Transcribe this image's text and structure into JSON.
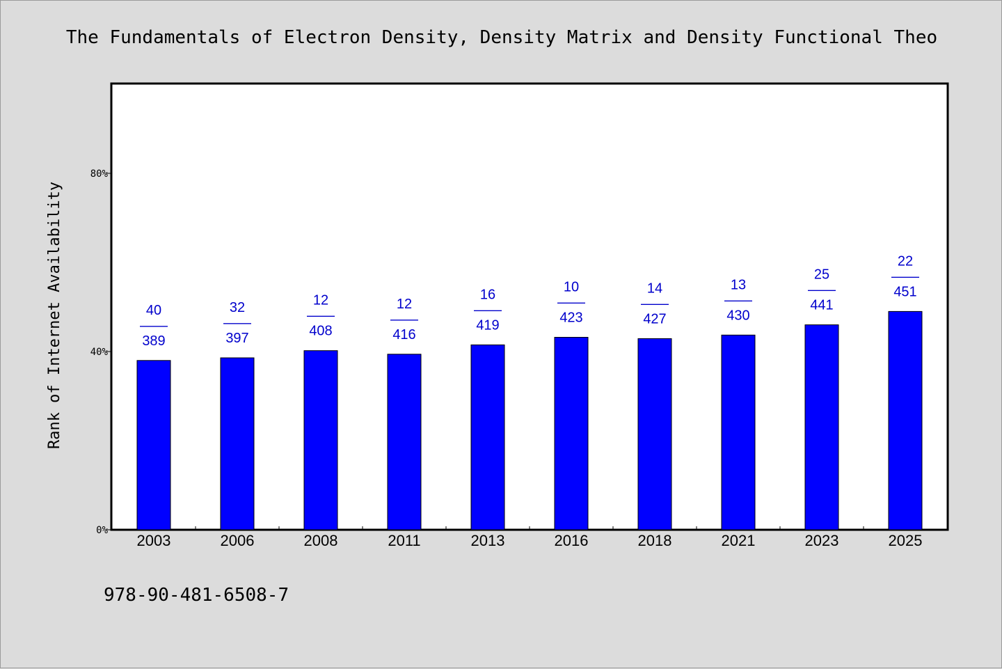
{
  "chart_data": {
    "type": "bar",
    "title": "The Fundamentals of Electron Density, Density Matrix and Density Functional Theo",
    "ylabel": "Rank of Internet Availability",
    "xlabel": "",
    "categories": [
      "2003",
      "2006",
      "2008",
      "2011",
      "2013",
      "2016",
      "2018",
      "2021",
      "2023",
      "2025"
    ],
    "values": [
      38.0,
      38.6,
      40.2,
      39.4,
      41.5,
      43.2,
      42.9,
      43.7,
      46.0,
      49.0
    ],
    "data_labels": [
      {
        "top": "40",
        "sep": "——",
        "bottom": "389"
      },
      {
        "top": "32",
        "sep": "——",
        "bottom": "397"
      },
      {
        "top": "12",
        "sep": "——",
        "bottom": "408"
      },
      {
        "top": "12",
        "sep": "——",
        "bottom": "416"
      },
      {
        "top": "16",
        "sep": "——",
        "bottom": "419"
      },
      {
        "top": "10",
        "sep": "——",
        "bottom": "423"
      },
      {
        "top": "14",
        "sep": "——",
        "bottom": "427"
      },
      {
        "top": "13",
        "sep": "——",
        "bottom": "430"
      },
      {
        "top": "25",
        "sep": "——",
        "bottom": "441"
      },
      {
        "top": "22",
        "sep": "——",
        "bottom": "451"
      }
    ],
    "yticks": [
      {
        "value": 0,
        "label": "0%"
      },
      {
        "value": 40,
        "label": "40%"
      },
      {
        "value": 80,
        "label": "80%"
      }
    ],
    "ylim": [
      0,
      100
    ],
    "grid": false,
    "bar_color": "#0000ff",
    "label_color": "#0000cc",
    "plot_background": "#ffffff",
    "page_background": "#dcdcdc"
  },
  "footer": {
    "isbn": "978-90-481-6508-7"
  }
}
